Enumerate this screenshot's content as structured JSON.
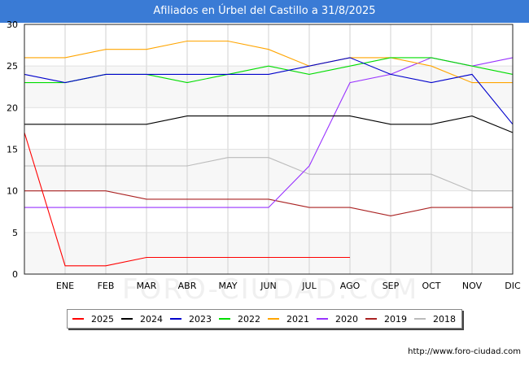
{
  "header": {
    "title": "Afiliados en Úrbel del Castillo a 31/8/2025"
  },
  "credit": "http://www.foro-ciudad.com",
  "watermark": "FORO-CIUDAD.COM",
  "chart_data": {
    "type": "line",
    "title": "Afiliados en Úrbel del Castillo a 31/8/2025",
    "xlabel": "",
    "ylabel": "",
    "categories": [
      "",
      "ENE",
      "FEB",
      "MAR",
      "ABR",
      "MAY",
      "JUN",
      "JUL",
      "AGO",
      "SEP",
      "OCT",
      "NOV",
      "DIC"
    ],
    "ylim": [
      0,
      30
    ],
    "yticks": [
      0,
      5,
      10,
      15,
      20,
      25,
      30
    ],
    "grid": true,
    "legend_position": "bottom",
    "series": [
      {
        "name": "2025",
        "color": "#ff0000",
        "values": [
          17,
          1,
          1,
          2,
          2,
          2,
          2,
          2,
          2,
          null,
          null,
          null,
          null
        ]
      },
      {
        "name": "2024",
        "color": "#000000",
        "values": [
          18,
          18,
          18,
          18,
          19,
          19,
          19,
          19,
          19,
          18,
          18,
          19,
          17
        ]
      },
      {
        "name": "2023",
        "color": "#0000cc",
        "values": [
          24,
          23,
          24,
          24,
          24,
          24,
          24,
          25,
          26,
          24,
          23,
          24,
          18
        ]
      },
      {
        "name": "2022",
        "color": "#00dd00",
        "values": [
          23,
          23,
          24,
          24,
          23,
          24,
          25,
          24,
          25,
          26,
          26,
          25,
          24
        ]
      },
      {
        "name": "2021",
        "color": "#ffa500",
        "values": [
          26,
          26,
          27,
          27,
          28,
          28,
          27,
          25,
          26,
          26,
          25,
          23,
          23
        ]
      },
      {
        "name": "2020",
        "color": "#9933ff",
        "values": [
          8,
          8,
          8,
          8,
          8,
          8,
          8,
          13,
          23,
          24,
          26,
          25,
          26
        ]
      },
      {
        "name": "2019",
        "color": "#aa2222",
        "values": [
          10,
          10,
          10,
          9,
          9,
          9,
          9,
          8,
          8,
          7,
          8,
          8,
          8
        ]
      },
      {
        "name": "2018",
        "color": "#bbbbbb",
        "values": [
          13,
          13,
          13,
          13,
          13,
          14,
          14,
          12,
          12,
          12,
          12,
          10,
          10
        ]
      }
    ]
  }
}
